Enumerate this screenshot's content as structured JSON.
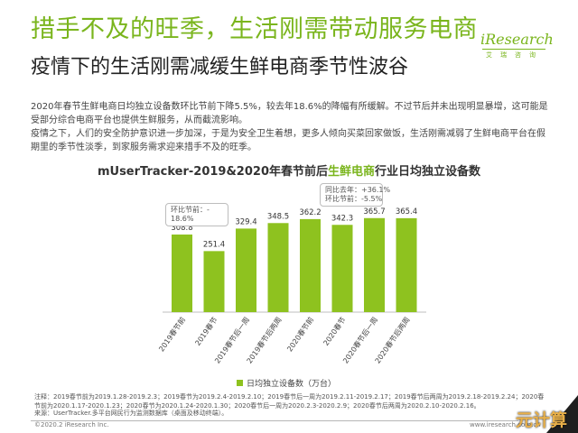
{
  "header": {
    "title": "措手不及的旺季，生活刚需带动服务电商",
    "subtitle": "疫情下的生活刚需减缓生鲜电商季节性波谷"
  },
  "logo": {
    "main": "iResearch",
    "sub": "艾瑞咨询"
  },
  "paragraphs": [
    "2020年春节生鲜电商日均独立设备数环比节前下降5.5%，较去年18.6%的降幅有所缓解。不过节后并未出现明显暴增，这可能是受部分综合电商平台也提供生鲜服务，从而截流影响。",
    "疫情之下，人们的安全防护意识进一步加深，于是为安全卫生着想，更多人倾向买菜回家做饭，生活刚需减弱了生鲜电商平台在假期里的季节性淡季，到家服务需求迎来措手不及的旺季。"
  ],
  "chart_title": {
    "prefix": "mUserTracker-2019&2020年春节前后",
    "highlight": "生鲜电商",
    "suffix": "行业日均独立设备数"
  },
  "callouts": {
    "c2019": [
      "环比节前：-",
      "18.6%"
    ],
    "c2020": [
      "同比去年：+36.1%",
      "环比节前：-5.5%"
    ]
  },
  "chart_data": {
    "type": "bar",
    "categories": [
      "2019春节前",
      "2019春节",
      "2019春节后一周",
      "2019春节后两周",
      "2020春节前",
      "2020春节",
      "2020春节后一周",
      "2020春节后两周"
    ],
    "series": [
      {
        "name": "日均独立设备数（万台）",
        "values": [
          308.8,
          251.4,
          329.4,
          348.5,
          362.2,
          342.3,
          365.7,
          365.4
        ]
      }
    ],
    "value_labels": [
      "308.8",
      "251.4",
      "329.4",
      "348.5",
      "362.2",
      "342.3",
      "365.7",
      "365.4"
    ],
    "ylim": [
      0,
      400
    ],
    "grid": false,
    "legend": "bottom",
    "bar_color": "#8ec21f"
  },
  "legend_label": "日均独立设备数（万台）",
  "notes": [
    "注释：2019春节前为2019.1.28-2019.2.3；2019春节为2019.2.4-2019.2.10；2019春节后一周为2019.2.11-2019.2.17；2019春节后两周为2019.2.18-2019.2.24；2020春节前为2020.1.17-2020.1.23；2020春节为2020.1.24-2020.1.30；2020春节后一周为2020.2.3-2020.2.9；2020春节后两周为2020.2.10-2020.2.16。",
    "来源：UserTracker.多平台网民行为监测数据库（桌面及移动终端）。"
  ],
  "footer": {
    "copyright": "©2020.2 iResearch Inc.",
    "site": "www.iresearch.com.cn"
  },
  "watermark": "元计算",
  "colors": {
    "accent": "#7ab51d",
    "bar": "#8ec21f"
  }
}
